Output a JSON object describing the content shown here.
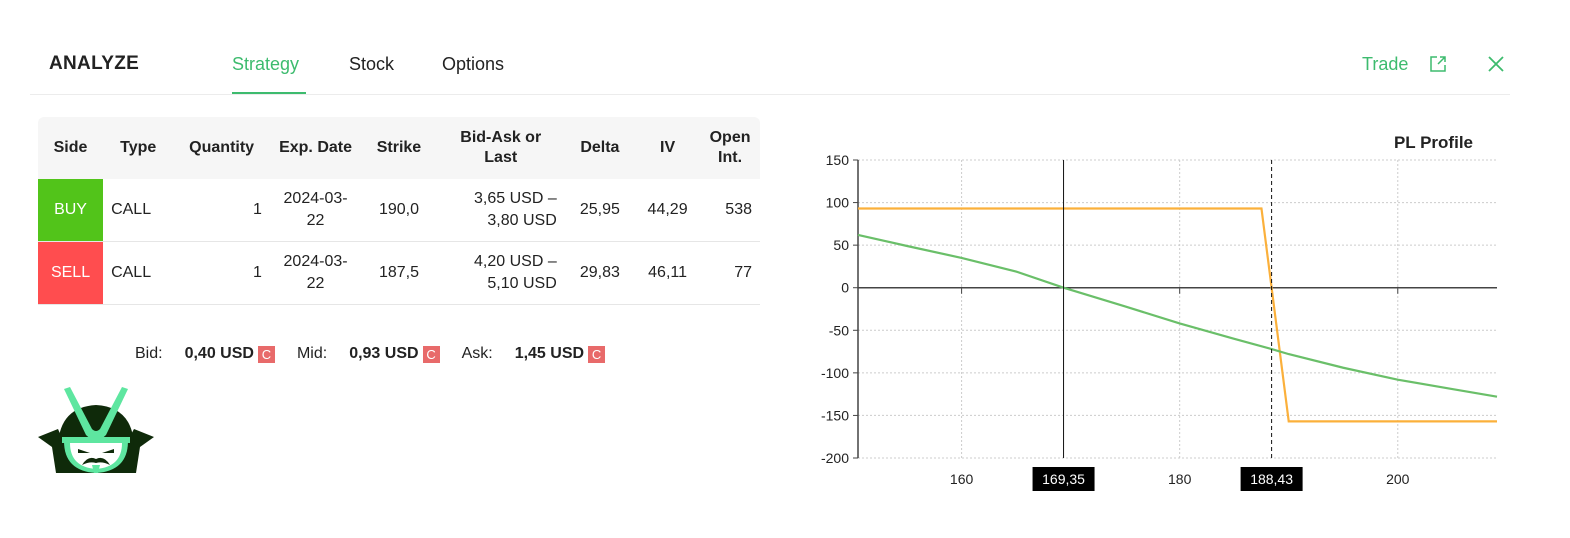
{
  "header": {
    "title": "ANALYZE",
    "tabs": [
      {
        "label": "Strategy",
        "active": true
      },
      {
        "label": "Stock",
        "active": false
      },
      {
        "label": "Options",
        "active": false
      }
    ],
    "trade_label": "Trade",
    "trade_icon": "external-link-icon",
    "close_icon": "close-icon",
    "accent_color": "#3dbb6e"
  },
  "table": {
    "columns": [
      "Side",
      "Type",
      "Quantity",
      "Exp. Date",
      "Strike",
      "Bid-Ask or Last",
      "Delta",
      "IV",
      "Open Int."
    ],
    "rows": [
      {
        "side": "BUY",
        "type": "CALL",
        "quantity": "1",
        "exp_date": "2024-03-22",
        "strike": "190,0",
        "bid_ask": "3,65 USD – 3,80 USD",
        "delta": "25,95",
        "iv": "44,29",
        "open_int": "538",
        "side_color": "#52c41a"
      },
      {
        "side": "SELL",
        "type": "CALL",
        "quantity": "1",
        "exp_date": "2024-03-22",
        "strike": "187,5",
        "bid_ask": "4,20 USD – 5,10 USD",
        "delta": "29,83",
        "iv": "46,11",
        "open_int": "77",
        "side_color": "#ff4d4f"
      }
    ]
  },
  "summary": {
    "bid_label": "Bid:",
    "bid_value": "0,40 USD",
    "mid_label": "Mid:",
    "mid_value": "0,93 USD",
    "ask_label": "Ask:",
    "ask_value": "1,45 USD",
    "badge": "C"
  },
  "chart_data": {
    "type": "line",
    "title": "PL Profile",
    "xlim": [
      150.5,
      209.1
    ],
    "ylim": [
      -200,
      150
    ],
    "x_ticks": [
      160,
      180,
      200
    ],
    "y_ticks": [
      150,
      100,
      50,
      0,
      -50,
      -100,
      -150,
      -200
    ],
    "grid": true,
    "markers": [
      {
        "x": 169.35,
        "label": "169,35",
        "style": "solid"
      },
      {
        "x": 188.43,
        "label": "188,43",
        "style": "dashed"
      }
    ],
    "series": [
      {
        "color": "#fbb03b",
        "x": [
          150.5,
          187.5,
          190.0,
          209.1
        ],
        "y": [
          93,
          93,
          -157,
          -157
        ]
      },
      {
        "color": "#6abf69",
        "x": [
          150.5,
          155,
          160,
          165,
          169.35,
          175,
          180,
          185,
          188.43,
          190,
          195,
          200,
          205,
          209.1
        ],
        "y": [
          62,
          49,
          35,
          19,
          0,
          -22,
          -42,
          -60,
          -72,
          -78,
          -94,
          -108,
          -119,
          -128
        ]
      }
    ]
  }
}
